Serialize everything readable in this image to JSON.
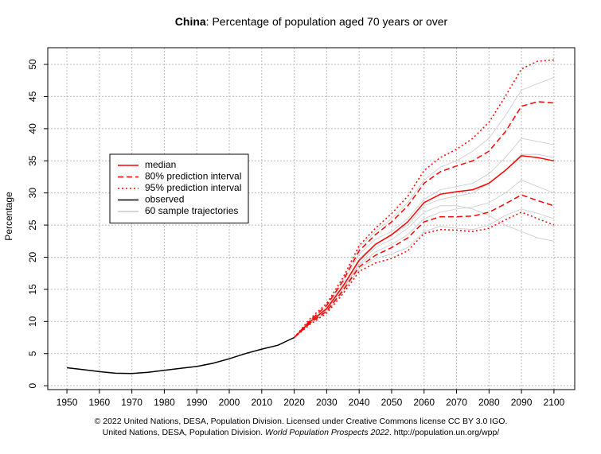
{
  "chart_data": {
    "type": "line",
    "title_bold": "China",
    "title": ": Percentage of population aged 70 years or over",
    "ylabel": "Percentage",
    "caption_line1": "© 2022 United Nations, DESA, Population Division. Licensed under Creative Commons license CC BY 3.0 IGO.",
    "caption_line2": [
      "United Nations, DESA, Population Division. ",
      "World Population Prospects 2022",
      ". http://population.un.org/wpp/"
    ],
    "x": [
      1950,
      1955,
      1960,
      1965,
      1970,
      1975,
      1980,
      1985,
      1990,
      1995,
      2000,
      2005,
      2010,
      2015,
      2020,
      2025,
      2030,
      2035,
      2040,
      2045,
      2050,
      2055,
      2060,
      2065,
      2070,
      2075,
      2080,
      2085,
      2090,
      2095,
      2100
    ],
    "xlim": [
      1944.1,
      2106.4
    ],
    "xticks": [
      1950,
      1960,
      1970,
      1980,
      1990,
      2000,
      2010,
      2020,
      2030,
      2040,
      2050,
      2060,
      2070,
      2080,
      2090,
      2100
    ],
    "ylim": [
      -0.6,
      52.6
    ],
    "yticks": [
      0,
      5,
      10,
      15,
      20,
      25,
      30,
      35,
      40,
      45,
      50
    ],
    "grid": true,
    "legend": "upper-left",
    "trajectories": {
      "name": "60 sample trajectories",
      "color": "#c8c8c8",
      "series": [
        [
          null,
          null,
          null,
          null,
          null,
          null,
          null,
          null,
          null,
          null,
          null,
          null,
          null,
          null,
          7.5,
          10.1,
          12.2,
          16.0,
          20.5,
          22.8,
          24.0,
          26.0,
          29.0,
          30.5,
          31.0,
          31.5,
          33.0,
          35.5,
          38.5,
          38.0,
          37.5
        ],
        [
          null,
          null,
          null,
          null,
          null,
          null,
          null,
          null,
          null,
          null,
          null,
          null,
          null,
          null,
          7.5,
          9.9,
          11.8,
          15.0,
          18.8,
          20.8,
          22.0,
          23.5,
          26.0,
          27.0,
          27.5,
          27.8,
          28.5,
          30.0,
          32.0,
          31.0,
          30.0
        ],
        [
          null,
          null,
          null,
          null,
          null,
          null,
          null,
          null,
          null,
          null,
          null,
          null,
          null,
          null,
          7.5,
          10.3,
          12.4,
          16.5,
          21.5,
          24.0,
          26.0,
          28.5,
          32.0,
          34.0,
          35.0,
          36.5,
          38.5,
          42.0,
          46.0,
          47.0,
          48.0
        ],
        [
          null,
          null,
          null,
          null,
          null,
          null,
          null,
          null,
          null,
          null,
          null,
          null,
          null,
          null,
          7.5,
          9.7,
          11.5,
          14.6,
          18.2,
          19.8,
          20.5,
          21.5,
          24.0,
          24.8,
          24.5,
          24.3,
          25.0,
          26.5,
          27.5,
          26.8,
          26.0
        ],
        [
          null,
          null,
          null,
          null,
          null,
          null,
          null,
          null,
          null,
          null,
          null,
          null,
          null,
          null,
          7.5,
          10.0,
          12.0,
          15.5,
          19.8,
          22.0,
          23.5,
          25.0,
          28.0,
          29.0,
          29.5,
          30.0,
          31.5,
          33.5,
          36.0,
          36.0,
          35.5
        ],
        [
          null,
          null,
          null,
          null,
          null,
          null,
          null,
          null,
          null,
          null,
          null,
          null,
          null,
          null,
          7.5,
          10.0,
          11.9,
          15.2,
          19.0,
          21.5,
          22.8,
          24.5,
          27.0,
          28.0,
          28.0,
          27.5,
          26.5,
          25.0,
          24.0,
          23.0,
          22.5
        ]
      ]
    },
    "series": [
      {
        "name": "median",
        "color": "#ff0000",
        "dash": "solid",
        "values": [
          null,
          null,
          null,
          null,
          null,
          null,
          null,
          null,
          null,
          null,
          null,
          null,
          null,
          null,
          7.5,
          10.0,
          12.0,
          15.5,
          19.5,
          22.0,
          23.5,
          25.5,
          28.5,
          29.8,
          30.2,
          30.5,
          31.5,
          33.5,
          35.8,
          35.5,
          35.0
        ]
      },
      {
        "name": "80% prediction interval",
        "color": "#ff0000",
        "dash": "dashed",
        "upper": [
          null,
          null,
          null,
          null,
          null,
          null,
          null,
          null,
          null,
          null,
          null,
          null,
          null,
          null,
          7.5,
          10.2,
          12.5,
          16.3,
          21.0,
          23.5,
          25.5,
          28.0,
          31.5,
          33.3,
          34.2,
          35.0,
          36.5,
          39.5,
          43.5,
          44.2,
          44.0
        ],
        "lower": [
          null,
          null,
          null,
          null,
          null,
          null,
          null,
          null,
          null,
          null,
          null,
          null,
          null,
          null,
          7.5,
          9.8,
          11.6,
          14.8,
          18.5,
          20.3,
          21.5,
          23.0,
          25.5,
          26.3,
          26.3,
          26.4,
          27.0,
          28.3,
          29.7,
          28.8,
          28.0
        ]
      },
      {
        "name": "95% prediction interval",
        "color": "#ff0000",
        "dash": "dotted",
        "upper": [
          null,
          null,
          null,
          null,
          null,
          null,
          null,
          null,
          null,
          null,
          null,
          null,
          null,
          null,
          7.5,
          10.5,
          12.8,
          16.8,
          21.8,
          24.5,
          26.8,
          29.5,
          33.5,
          35.5,
          36.8,
          38.5,
          41.0,
          45.0,
          49.3,
          50.5,
          50.7
        ],
        "lower": [
          null,
          null,
          null,
          null,
          null,
          null,
          null,
          null,
          null,
          null,
          null,
          null,
          null,
          null,
          7.5,
          9.6,
          11.3,
          14.3,
          17.8,
          19.1,
          19.8,
          21.0,
          23.7,
          24.3,
          24.2,
          24.0,
          24.5,
          25.8,
          27.0,
          26.0,
          25.0
        ]
      },
      {
        "name": "observed",
        "color": "#000000",
        "dash": "solid",
        "values": [
          2.8,
          2.5,
          2.2,
          1.95,
          1.9,
          2.1,
          2.4,
          2.7,
          3.0,
          3.5,
          4.2,
          5.0,
          5.7,
          6.3,
          7.5,
          null,
          null,
          null,
          null,
          null,
          null,
          null,
          null,
          null,
          null,
          null,
          null,
          null,
          null,
          null,
          null
        ]
      }
    ]
  }
}
